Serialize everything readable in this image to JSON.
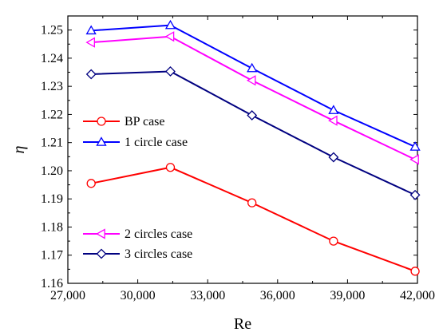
{
  "chart_data": {
    "type": "line",
    "xlabel": "Re",
    "ylabel": "η",
    "xlim": [
      27000,
      42000
    ],
    "ylim": [
      1.16,
      1.255
    ],
    "xticks": [
      "27,000",
      "30,000",
      "33,000",
      "36,000",
      "39,000",
      "42,000"
    ],
    "xtick_values": [
      27000,
      30000,
      33000,
      36000,
      39000,
      42000
    ],
    "yticks": [
      "1.16",
      "1.17",
      "1.18",
      "1.19",
      "1.20",
      "1.21",
      "1.22",
      "1.23",
      "1.24",
      "1.25"
    ],
    "ytick_values": [
      1.16,
      1.17,
      1.18,
      1.19,
      1.2,
      1.21,
      1.22,
      1.23,
      1.24,
      1.25
    ],
    "x": [
      28000,
      31400,
      34900,
      38400,
      41900
    ],
    "series": [
      {
        "name": "BP case",
        "marker": "circle",
        "color": "#ff0000",
        "values": [
          1.1955,
          1.2012,
          1.1886,
          1.175,
          1.1643
        ]
      },
      {
        "name": "1 circle case",
        "marker": "triangle-up",
        "color": "#0000ff",
        "values": [
          1.2498,
          1.2517,
          1.2364,
          1.2215,
          1.2085
        ]
      },
      {
        "name": "2 circles case",
        "marker": "triangle-left",
        "color": "#ff00ff",
        "values": [
          1.2456,
          1.2477,
          1.2321,
          1.2178,
          1.204
        ]
      },
      {
        "name": "3 circles case",
        "marker": "diamond",
        "color": "#000080",
        "values": [
          1.2343,
          1.2353,
          1.2197,
          1.2048,
          1.1914
        ]
      }
    ],
    "legend": [
      {
        "series": 0,
        "position": "upper-left"
      },
      {
        "series": 1,
        "position": "upper-left"
      },
      {
        "series": 2,
        "position": "lower-left"
      },
      {
        "series": 3,
        "position": "lower-left"
      }
    ],
    "grid": false
  }
}
